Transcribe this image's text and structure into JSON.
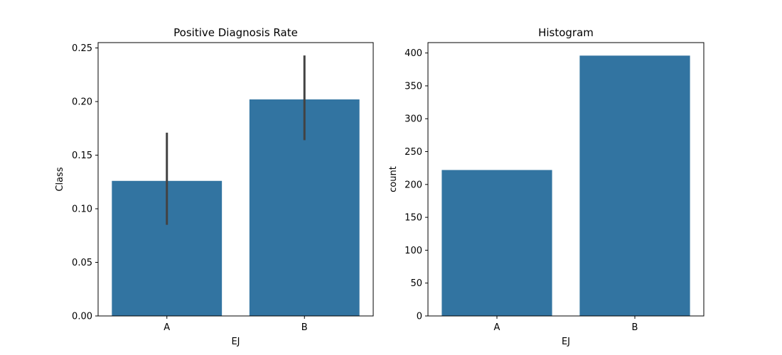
{
  "chart_data": [
    {
      "type": "bar",
      "title": "Positive Diagnosis Rate",
      "xlabel": "EJ",
      "ylabel": "Class",
      "categories": [
        "A",
        "B"
      ],
      "values": [
        0.126,
        0.202
      ],
      "error_bars": [
        [
          0.085,
          0.171
        ],
        [
          0.164,
          0.243
        ]
      ],
      "ylim": [
        0,
        0.255
      ],
      "yticks": [
        0.0,
        0.05,
        0.1,
        0.15,
        0.2,
        0.25
      ],
      "ytick_labels": [
        "0.00",
        "0.05",
        "0.10",
        "0.15",
        "0.20",
        "0.25"
      ],
      "bar_color": "#3274a1",
      "errorbar_color": "#424242",
      "grid": false
    },
    {
      "type": "bar",
      "title": "Histogram",
      "xlabel": "EJ",
      "ylabel": "count",
      "categories": [
        "A",
        "B"
      ],
      "values": [
        222,
        396
      ],
      "ylim": [
        0,
        415.8
      ],
      "yticks": [
        0,
        50,
        100,
        150,
        200,
        250,
        300,
        350,
        400
      ],
      "ytick_labels": [
        "0",
        "50",
        "100",
        "150",
        "200",
        "250",
        "300",
        "350",
        "400"
      ],
      "bar_color": "#3274a1",
      "grid": false
    }
  ]
}
